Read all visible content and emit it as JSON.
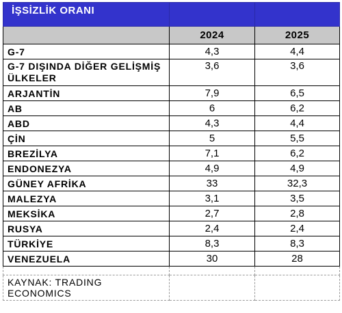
{
  "table": {
    "title": "İŞSİZLİK ORANI",
    "columns": [
      "2024",
      "2025"
    ],
    "rows": [
      {
        "name": "G-7",
        "y2024": "4,3",
        "y2025": "4,4"
      },
      {
        "name": "G-7 DIŞINDA DİĞER GELİŞMİŞ ÜLKELER",
        "y2024": "3,6",
        "y2025": "3,6"
      },
      {
        "name": "ARJANTİN",
        "y2024": "7,9",
        "y2025": "6,5"
      },
      {
        "name": "AB",
        "y2024": "6",
        "y2025": "6,2"
      },
      {
        "name": "ABD",
        "y2024": "4,3",
        "y2025": "4,4"
      },
      {
        "name": "ÇİN",
        "y2024": "5",
        "y2025": "5,5"
      },
      {
        "name": "BREZİLYA",
        "y2024": "7,1",
        "y2025": "6,2"
      },
      {
        "name": "ENDONEZYA",
        "y2024": "4,9",
        "y2025": "4,9"
      },
      {
        "name": "GÜNEY AFRİKA",
        "y2024": "33",
        "y2025": "32,3"
      },
      {
        "name": "MALEZYA",
        "y2024": "3,1",
        "y2025": "3,5"
      },
      {
        "name": "MEKSİKA",
        "y2024": "2,7",
        "y2025": "2,8"
      },
      {
        "name": "RUSYA",
        "y2024": "2,4",
        "y2025": "2,4"
      },
      {
        "name": "TÜRKİYE",
        "y2024": "8,3",
        "y2025": "8,3"
      },
      {
        "name": "VENEZUELA",
        "y2024": "30",
        "y2025": "28"
      }
    ],
    "source": "KAYNAK: TRADING ECONOMICS"
  },
  "colors": {
    "title_bg": "#3333cc",
    "title_text": "#ffffff",
    "header_bg": "#c8c8c8"
  }
}
